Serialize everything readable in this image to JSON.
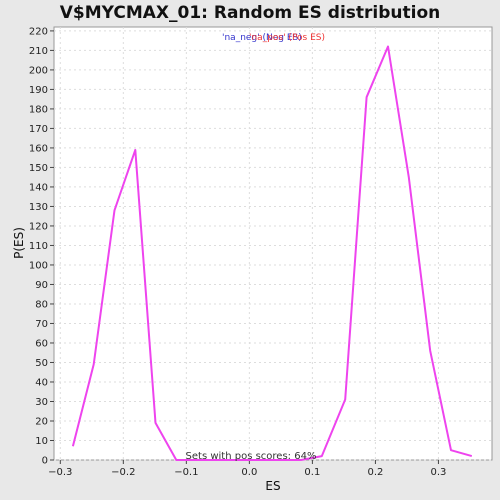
{
  "chart_data": {
    "type": "line",
    "title": "V$MYCMAX_01: Random ES distribution",
    "xlabel": "ES",
    "ylabel": "P(ES)",
    "xlim": [
      -0.31,
      0.385
    ],
    "ylim": [
      0,
      222
    ],
    "xticks": [
      -0.3,
      -0.2,
      -0.1,
      0.0,
      0.1,
      0.2,
      0.3
    ],
    "xtick_labels": [
      "−0.3",
      "−0.2",
      "−0.1",
      "0.0",
      "0.1",
      "0.2",
      "0.3"
    ],
    "yticks": [
      0,
      10,
      20,
      30,
      40,
      50,
      60,
      70,
      80,
      90,
      100,
      110,
      120,
      130,
      140,
      150,
      160,
      170,
      180,
      190,
      200,
      210,
      220
    ],
    "grid": true,
    "legend": {
      "placement": "top-center",
      "entries": [
        {
          "label": "'na_neg' (Neg ES)",
          "color": "#3333cc"
        },
        {
          "label": "'na_pos' (Pos ES)",
          "color": "#ee3333"
        }
      ]
    },
    "annotation": "Sets with pos scores: 64%",
    "series": [
      {
        "color": "#ee44ee",
        "x": [
          -0.28,
          -0.247,
          -0.214,
          -0.181,
          -0.149,
          -0.116,
          -0.083,
          -0.05,
          -0.017,
          0.016,
          0.049,
          0.082,
          0.115,
          0.152,
          0.186,
          0.22,
          0.253,
          0.287,
          0.32,
          0.353
        ],
        "y": [
          7,
          49,
          128,
          159,
          19,
          0,
          0,
          0,
          0,
          0,
          0,
          0,
          2,
          31,
          186,
          212,
          145,
          56,
          5,
          2
        ]
      }
    ]
  }
}
